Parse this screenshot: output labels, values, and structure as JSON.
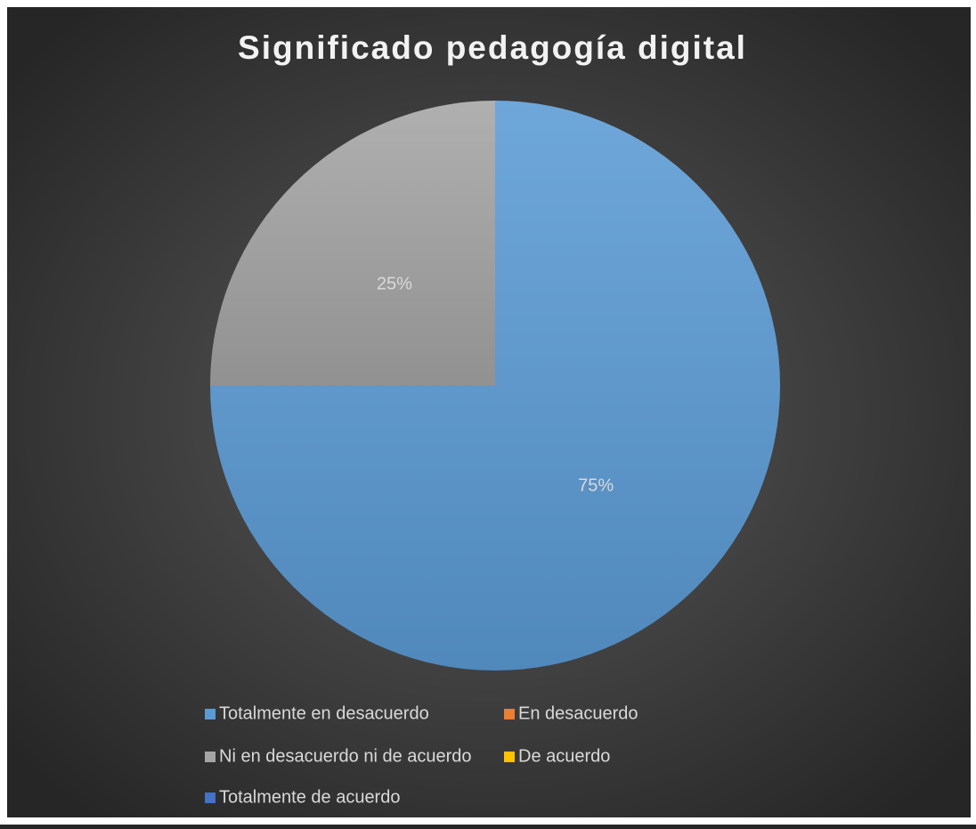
{
  "chart_data": {
    "type": "pie",
    "title": "Significado pedagogía digital",
    "categories": [
      "Totalmente en desacuerdo",
      "En desacuerdo",
      "Ni en desacuerdo ni de acuerdo",
      "De acuerdo",
      "Totalmente de acuerdo"
    ],
    "values": [
      75,
      0,
      25,
      0,
      0
    ],
    "value_labels": [
      "75%",
      null,
      "25%",
      null,
      null
    ],
    "colors": [
      "#5b9bd5",
      "#ed7d31",
      "#a5a5a5",
      "#ffc000",
      "#4472c4"
    ],
    "legend": "bottom"
  }
}
